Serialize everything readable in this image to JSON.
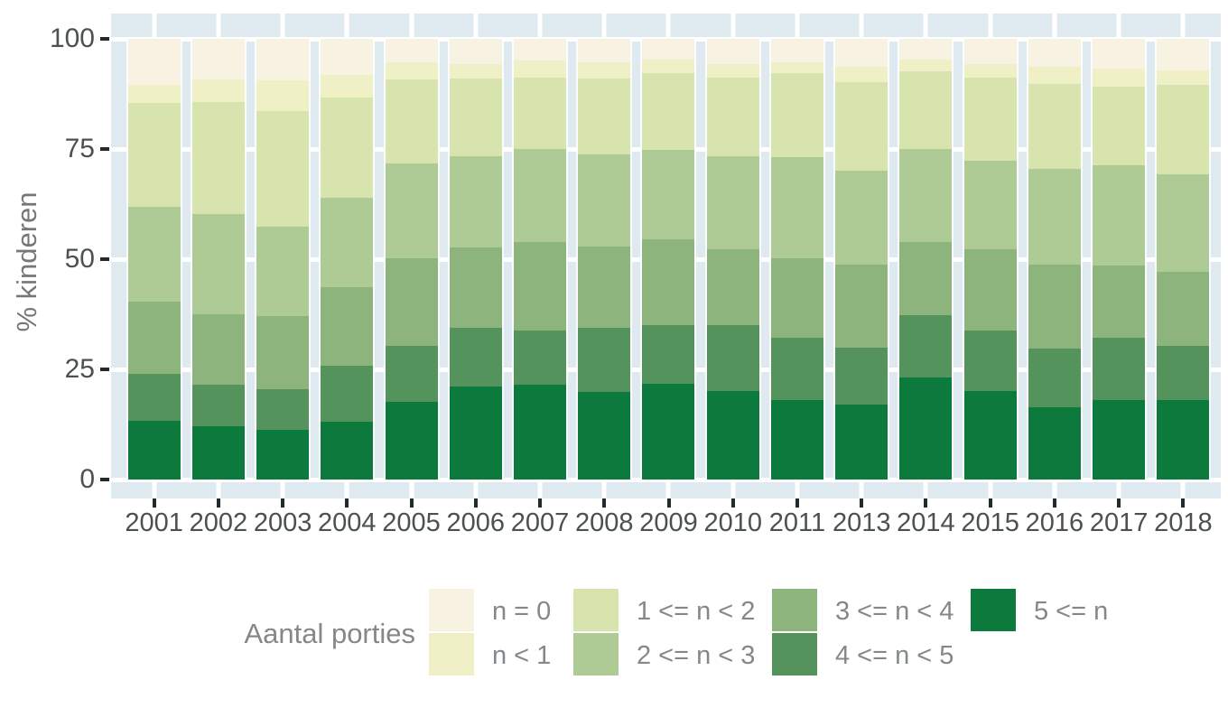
{
  "y_axis": {
    "title": "% kinderen",
    "tick_labels": [
      "0",
      "25",
      "50",
      "75",
      "100"
    ],
    "tick_values": [
      0,
      25,
      50,
      75,
      100
    ]
  },
  "x_axis": {
    "tick_labels": [
      "2001",
      "2002",
      "2003",
      "2004",
      "2005",
      "2006",
      "2007",
      "2008",
      "2009",
      "2010",
      "2011",
      "2013",
      "2014",
      "2015",
      "2016",
      "2017",
      "2018"
    ]
  },
  "legend": {
    "title": "Aantal porties",
    "items": [
      {
        "label": "n = 0",
        "color": "#f7f2e1"
      },
      {
        "label": "n < 1",
        "color": "#eff0c6"
      },
      {
        "label": "1 <= n < 2",
        "color": "#d8e4ae"
      },
      {
        "label": "2 <= n < 3",
        "color": "#aecb96"
      },
      {
        "label": "3 <= n < 4",
        "color": "#8db47d"
      },
      {
        "label": "4 <= n < 5",
        "color": "#54935b"
      },
      {
        "label": "5 <= n",
        "color": "#0c7a3c"
      }
    ]
  },
  "colors": {
    "panel_background": "#dfe9f0",
    "gridline": "#ffffff",
    "tick": "#26292c",
    "axis_text": "#4b5053",
    "legend_text": "#84888b"
  },
  "chart_data": {
    "type": "bar",
    "stacked": true,
    "stack_total": 100,
    "title": "",
    "xlabel": "",
    "ylabel": "% kinderen",
    "ylim": [
      0,
      100
    ],
    "y_gridlines": [
      0,
      25,
      50,
      75,
      100
    ],
    "legend_title": "Aantal porties",
    "legend_position": "bottom",
    "categories": [
      "2001",
      "2002",
      "2003",
      "2004",
      "2005",
      "2006",
      "2007",
      "2008",
      "2009",
      "2010",
      "2011",
      "2013",
      "2014",
      "2015",
      "2016",
      "2017",
      "2018"
    ],
    "series": [
      {
        "name": "5 <= n",
        "color": "#0c7a3c",
        "values": [
          13.3,
          12.1,
          11.2,
          13.1,
          17.7,
          21.1,
          21.5,
          19.8,
          21.8,
          20.1,
          18.1,
          17.0,
          23.2,
          20.1,
          16.3,
          18.1,
          18.1
        ]
      },
      {
        "name": "4 <= n < 5",
        "color": "#54935b",
        "values": [
          10.6,
          9.4,
          9.2,
          12.8,
          12.7,
          13.4,
          12.3,
          14.7,
          13.3,
          15.0,
          14.0,
          13.0,
          14.0,
          13.7,
          13.4,
          14.0,
          12.3
        ]
      },
      {
        "name": "3 <= n < 4",
        "color": "#8db47d",
        "values": [
          16.5,
          16.0,
          16.8,
          17.8,
          19.8,
          18.1,
          20.1,
          18.4,
          19.5,
          17.1,
          18.1,
          18.8,
          16.7,
          18.4,
          19.1,
          16.4,
          16.7
        ]
      },
      {
        "name": "2 <= n < 3",
        "color": "#aecb96",
        "values": [
          21.4,
          22.8,
          20.2,
          20.2,
          21.5,
          20.8,
          21.2,
          20.9,
          20.2,
          21.2,
          22.9,
          21.2,
          21.2,
          20.2,
          21.6,
          22.9,
          22.2
        ]
      },
      {
        "name": "1 <= n < 2",
        "color": "#d8e4ae",
        "values": [
          23.7,
          25.4,
          26.2,
          22.8,
          19.1,
          17.5,
          16.1,
          17.1,
          17.4,
          17.8,
          19.1,
          20.2,
          17.5,
          18.8,
          19.4,
          17.8,
          20.2
        ]
      },
      {
        "name": "n < 1",
        "color": "#eff0c6",
        "values": [
          4.0,
          5.0,
          6.9,
          5.1,
          3.8,
          3.4,
          3.9,
          3.7,
          3.1,
          3.1,
          2.4,
          3.4,
          2.7,
          3.1,
          3.8,
          4.1,
          3.4
        ]
      },
      {
        "name": "n = 0",
        "color": "#f7f2e1",
        "values": [
          10.5,
          9.3,
          9.5,
          8.2,
          5.4,
          5.7,
          4.9,
          5.4,
          4.7,
          5.7,
          5.4,
          6.4,
          4.7,
          5.7,
          6.4,
          6.7,
          7.1
        ]
      }
    ]
  }
}
